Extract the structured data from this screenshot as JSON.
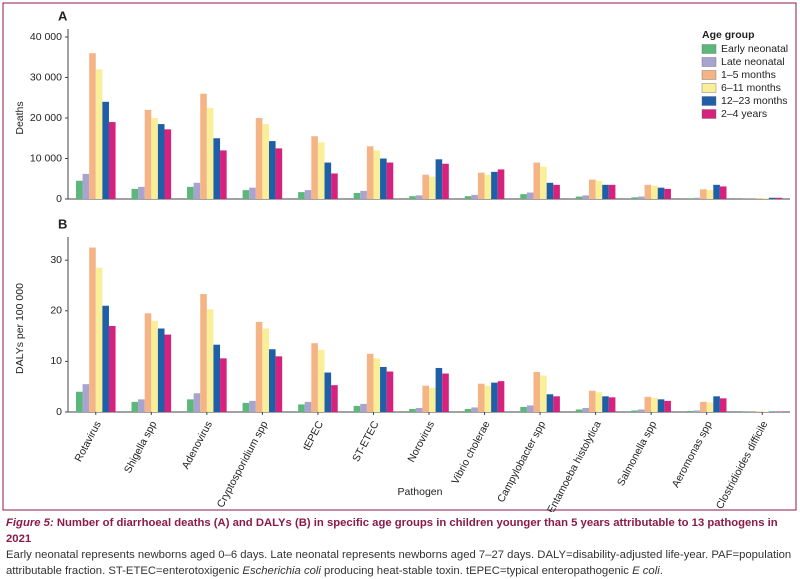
{
  "chart_data": [
    {
      "type": "bar",
      "panel": "A",
      "y_label": "Deaths",
      "legend_title": "Age group",
      "legend": "top-right",
      "ylim": [
        0,
        40000
      ],
      "yticks": [
        0,
        {
          "value": 10000,
          "label": "10 000"
        },
        {
          "value": 20000,
          "label": "20 000"
        },
        {
          "value": 30000,
          "label": "30 000"
        },
        {
          "value": 40000,
          "label": "40 000"
        }
      ],
      "series": [
        {
          "name": "Early neonatal",
          "color": "#5cb87a",
          "values": [
            4500,
            2500,
            3000,
            2200,
            1700,
            1500,
            700,
            700,
            1200,
            600,
            400,
            200,
            50
          ]
        },
        {
          "name": "Late neonatal",
          "color": "#a9a3cf",
          "values": [
            6200,
            3000,
            4000,
            2800,
            2200,
            2000,
            900,
            1000,
            1600,
            900,
            600,
            300,
            50
          ]
        },
        {
          "name": "1–5 months",
          "color": "#f5b485",
          "values": [
            36000,
            22000,
            26000,
            20000,
            15500,
            13000,
            6000,
            6500,
            9000,
            4800,
            3500,
            2400,
            200
          ]
        },
        {
          "name": "6–11 months",
          "color": "#f8ef98",
          "values": [
            32000,
            20000,
            22500,
            18500,
            14000,
            12000,
            5500,
            6000,
            8000,
            4500,
            3300,
            2200,
            200
          ]
        },
        {
          "name": "12–23 months",
          "color": "#1f5fa8",
          "values": [
            24000,
            18500,
            15000,
            14300,
            9000,
            10000,
            9800,
            6700,
            4000,
            3500,
            2800,
            3500,
            300
          ]
        },
        {
          "name": "2–4 years",
          "color": "#d6217e",
          "values": [
            19000,
            17200,
            12000,
            12500,
            6300,
            9000,
            8700,
            7300,
            3500,
            3500,
            2500,
            3100,
            300
          ]
        }
      ]
    },
    {
      "type": "bar",
      "panel": "B",
      "y_label": "DALYs per 100 000",
      "x_label": "Pathogen",
      "categories": [
        "Rotavirus",
        "Shigella spp",
        "Adenovirus",
        "Cryptosporidium spp",
        "tEPEC",
        "ST-ETEC",
        "Norovirus",
        "Vibrio cholerae",
        "Campylobacter spp",
        "Entamoeba histolytica",
        "Salmonella spp",
        "Aeromonas spp",
        "Clostridioides difficile"
      ],
      "ylim": [
        0,
        33
      ],
      "yticks": [
        0,
        10,
        20,
        30
      ],
      "series": [
        {
          "color": "#5cb87a",
          "values": [
            4,
            2,
            2.5,
            1.8,
            1.5,
            1.2,
            0.6,
            0.6,
            1,
            0.5,
            0.3,
            0.2,
            0.05
          ]
        },
        {
          "color": "#a9a3cf",
          "values": [
            5.5,
            2.5,
            3.7,
            2.2,
            2,
            1.6,
            0.8,
            0.9,
            1.3,
            0.8,
            0.5,
            0.3,
            0.05
          ]
        },
        {
          "color": "#f5b485",
          "values": [
            32.5,
            19.5,
            23.3,
            17.8,
            13.6,
            11.5,
            5.2,
            5.6,
            7.9,
            4.2,
            3,
            2,
            0.1
          ]
        },
        {
          "color": "#f8ef98",
          "values": [
            28.5,
            18,
            20.3,
            16.5,
            12.3,
            10.6,
            4.8,
            5.2,
            7.2,
            3.9,
            2.8,
            1.9,
            0.1
          ]
        },
        {
          "color": "#1f5fa8",
          "values": [
            21,
            16.5,
            13.3,
            12.4,
            7.8,
            8.9,
            8.7,
            5.8,
            3.5,
            3.1,
            2.5,
            3.1,
            0.1
          ]
        },
        {
          "color": "#d6217e",
          "values": [
            17,
            15.3,
            10.6,
            11,
            5.3,
            8,
            7.6,
            6.1,
            3.1,
            2.9,
            2.2,
            2.7,
            0.1
          ]
        }
      ]
    }
  ],
  "caption": {
    "label": "Figure 5:",
    "title": "Number of diarrhoeal deaths (A) and DALYs (B) in specific age groups in children younger than 5 years attributable to 13 pathogens in 2021",
    "body": [
      "Early neonatal represents newborns aged 0–6 days. Late neonatal represents newborns aged 7–27 days. DALY=disability-adjusted life-year. PAF=population attributable fraction. ST-ETEC=enterotoxigenic ",
      "Escherichia coli",
      " producing heat-stable toxin. tEPEC=typical enteropathogenic ",
      "E coli",
      "."
    ]
  }
}
